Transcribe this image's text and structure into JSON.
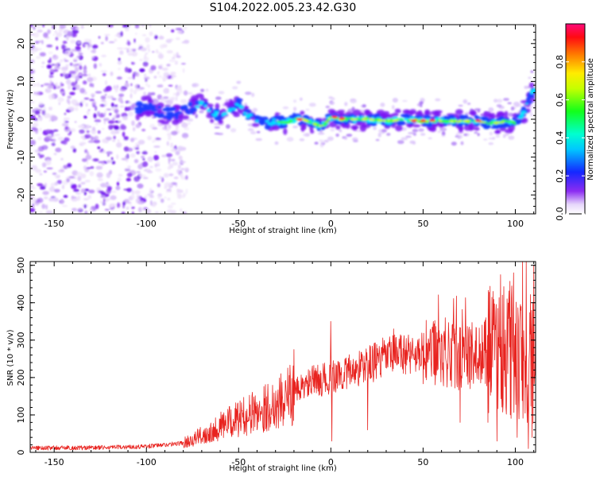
{
  "title": "S104.2022.005.23.42.G30",
  "colors": {
    "snr_line": "#e8231f",
    "noise_purple": "#7b19f2",
    "ridge_blue": "#1e3cff",
    "ridge_cyan": "#00e8ff",
    "ridge_green": "#32ff2a",
    "ridge_red": "#ff1010"
  },
  "chart_data": [
    {
      "type": "heatmap",
      "name": "spectrogram",
      "xlabel": "Height of straight line (km)",
      "ylabel": "Frequency (Hz)",
      "xlim": [
        -163,
        111
      ],
      "ylim": [
        -25,
        25
      ],
      "xticks": [
        -150,
        -100,
        -50,
        0,
        50,
        100
      ],
      "yticks": [
        -20,
        -10,
        0,
        10,
        20
      ],
      "xtick_labels": [
        "-150",
        "-100",
        "-50",
        "0",
        "50",
        "100"
      ],
      "ytick_labels": [
        "-20",
        "-10",
        "0",
        "10",
        "20"
      ],
      "colorbar": {
        "label": "Normalized spectral amplitude",
        "range": [
          0,
          1
        ],
        "ticks": [
          0.0,
          0.2,
          0.4,
          0.6,
          0.8
        ],
        "tick_labels": [
          "0.0",
          "0.2",
          "0.4",
          "0.6",
          "0.8"
        ],
        "colormap": "gist_rainbow_r (white at 0)"
      },
      "noise_region_x": [
        -163,
        -78
      ],
      "ridge_start_x": -105,
      "ridge": {
        "x": [
          -105,
          -100,
          -95,
          -90,
          -85,
          -80,
          -75,
          -70,
          -65,
          -60,
          -55,
          -50,
          -45,
          -40,
          -35,
          -30,
          -25,
          -20,
          -15,
          -10,
          -5,
          0,
          5,
          10,
          20,
          30,
          40,
          50,
          60,
          70,
          80,
          85,
          90,
          95,
          100,
          105,
          108,
          110
        ],
        "y": [
          3,
          3.5,
          2.5,
          1.5,
          1.5,
          2,
          3,
          4,
          2,
          1,
          2,
          4,
          1,
          0,
          -1,
          -0.5,
          -1,
          0,
          0,
          -1,
          -2,
          0.5,
          0,
          0,
          0,
          -0.5,
          0,
          -0.5,
          -0.5,
          -0.5,
          -0.5,
          -1,
          -1,
          -0.5,
          -1,
          2,
          6,
          8
        ]
      }
    },
    {
      "type": "line",
      "name": "snr",
      "xlabel": "Height of straight line (km)",
      "ylabel": "SNR (10 * v/v)",
      "xlim": [
        -163,
        111
      ],
      "ylim": [
        0,
        510
      ],
      "xticks": [
        -150,
        -100,
        -50,
        0,
        50,
        100
      ],
      "yticks": [
        0,
        100,
        200,
        300,
        400,
        500
      ],
      "xtick_labels": [
        "-150",
        "-100",
        "-50",
        "0",
        "50",
        "100"
      ],
      "ytick_labels": [
        "0",
        "100",
        "200",
        "300",
        "400",
        "500"
      ],
      "trend": {
        "x": [
          -163,
          -140,
          -120,
          -100,
          -90,
          -80,
          -70,
          -60,
          -50,
          -40,
          -30,
          -20,
          -10,
          0,
          10,
          20,
          30,
          40,
          50,
          60,
          70,
          80,
          90,
          100,
          111
        ],
        "y": [
          12,
          12,
          13,
          16,
          20,
          25,
          45,
          70,
          90,
          110,
          130,
          160,
          190,
          200,
          215,
          235,
          255,
          265,
          265,
          265,
          255,
          260,
          270,
          270,
          250
        ]
      },
      "spikes": [
        {
          "x": -25,
          "y": 110
        },
        {
          "x": -20,
          "y": 275
        },
        {
          "x": -5,
          "y": 150
        },
        {
          "x": 0,
          "y": 350
        },
        {
          "x": 0.5,
          "y": 30
        },
        {
          "x": 20,
          "y": 60
        },
        {
          "x": 34,
          "y": 330
        },
        {
          "x": 48,
          "y": 220
        },
        {
          "x": 55,
          "y": 335
        },
        {
          "x": 62,
          "y": 360
        },
        {
          "x": 70,
          "y": 80
        },
        {
          "x": 75,
          "y": 335
        },
        {
          "x": 84,
          "y": 360
        },
        {
          "x": 90,
          "y": 30
        },
        {
          "x": 92,
          "y": 475
        },
        {
          "x": 95,
          "y": 120
        },
        {
          "x": 99,
          "y": 480
        },
        {
          "x": 101,
          "y": 40
        },
        {
          "x": 104,
          "y": 510
        },
        {
          "x": 106,
          "y": 510
        },
        {
          "x": 107,
          "y": 10
        },
        {
          "x": 109,
          "y": 40
        },
        {
          "x": 110,
          "y": 500
        }
      ]
    }
  ]
}
